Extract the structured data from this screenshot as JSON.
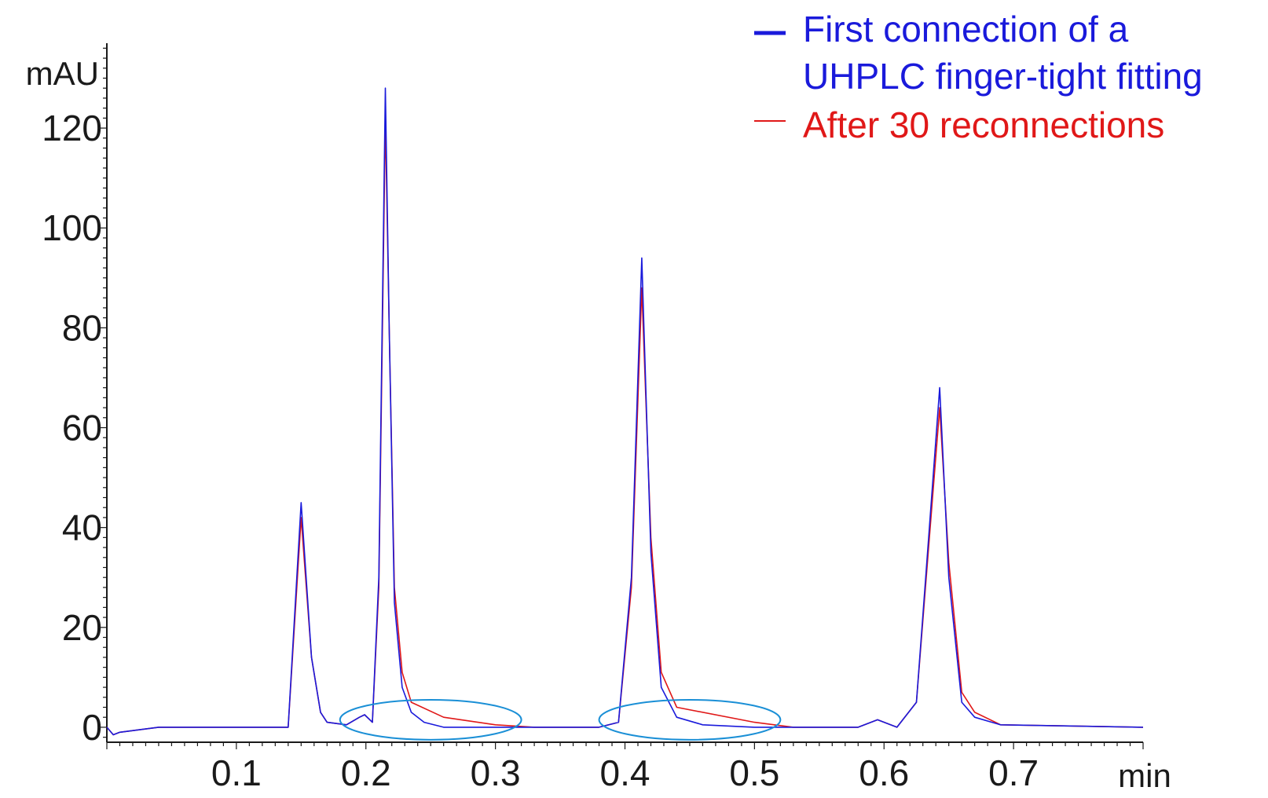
{
  "chart_data": {
    "type": "line",
    "xlabel": "min",
    "ylabel": "mAU",
    "xlim": [
      0,
      0.8
    ],
    "ylim": [
      -3,
      137
    ],
    "xticks": [
      "0.1",
      "0.2",
      "0.3",
      "0.4",
      "0.5",
      "0.6",
      "0.7"
    ],
    "yticks": [
      "0",
      "20",
      "40",
      "60",
      "80",
      "100",
      "120"
    ],
    "grid": false,
    "legend_position": "top-right",
    "colors": {
      "series1": "#1a1adb",
      "series2": "#e01818",
      "highlight": "#1a8fd6",
      "axis": "#1a1a1a"
    },
    "series": [
      {
        "name": "First connection of a UHPLC finger-tight fitting",
        "x": [
          0.0,
          0.005,
          0.01,
          0.04,
          0.14,
          0.15,
          0.158,
          0.165,
          0.17,
          0.185,
          0.195,
          0.199,
          0.205,
          0.21,
          0.215,
          0.218,
          0.222,
          0.228,
          0.235,
          0.245,
          0.26,
          0.3,
          0.38,
          0.395,
          0.405,
          0.413,
          0.42,
          0.428,
          0.44,
          0.46,
          0.5,
          0.58,
          0.595,
          0.61,
          0.625,
          0.635,
          0.643,
          0.65,
          0.66,
          0.67,
          0.69,
          0.8
        ],
        "y": [
          0,
          -1.5,
          -1.0,
          0,
          0,
          45,
          14,
          3,
          1,
          0.5,
          2,
          2.5,
          1,
          30,
          128,
          80,
          25,
          8,
          3,
          1,
          0,
          0,
          0,
          1,
          30,
          94,
          35,
          8,
          2,
          0.5,
          0,
          0,
          1.5,
          0,
          5,
          40,
          68,
          30,
          5,
          2,
          0.5,
          0
        ]
      },
      {
        "name": "After 30 reconnections",
        "x": [
          0.0,
          0.005,
          0.01,
          0.04,
          0.14,
          0.15,
          0.158,
          0.165,
          0.17,
          0.185,
          0.195,
          0.199,
          0.205,
          0.21,
          0.215,
          0.218,
          0.222,
          0.228,
          0.235,
          0.26,
          0.3,
          0.33,
          0.38,
          0.395,
          0.405,
          0.413,
          0.42,
          0.428,
          0.44,
          0.5,
          0.53,
          0.58,
          0.595,
          0.61,
          0.625,
          0.635,
          0.643,
          0.65,
          0.66,
          0.67,
          0.69,
          0.8
        ],
        "y": [
          0,
          -1.5,
          -1.0,
          0,
          0,
          42,
          14,
          3,
          1,
          0.5,
          2,
          2.5,
          1,
          28,
          122,
          80,
          28,
          11,
          5,
          2,
          0.5,
          0,
          0,
          1,
          28,
          88,
          38,
          11,
          4,
          1,
          0,
          0,
          1.5,
          0,
          5,
          38,
          64,
          33,
          7,
          3,
          0.5,
          0
        ]
      }
    ],
    "annotations": [
      {
        "shape": "ellipse",
        "x_range": [
          0.18,
          0.32
        ],
        "y_range": [
          -2.5,
          5.5
        ]
      },
      {
        "shape": "ellipse",
        "x_range": [
          0.38,
          0.52
        ],
        "y_range": [
          -2.5,
          5.5
        ]
      }
    ]
  },
  "legend": {
    "items": [
      {
        "lines": [
          "First connection of a",
          "UHPLC finger-tight fitting"
        ],
        "color": "#1a1adb"
      },
      {
        "lines": [
          "After 30 reconnections"
        ],
        "color": "#e01818"
      }
    ]
  }
}
